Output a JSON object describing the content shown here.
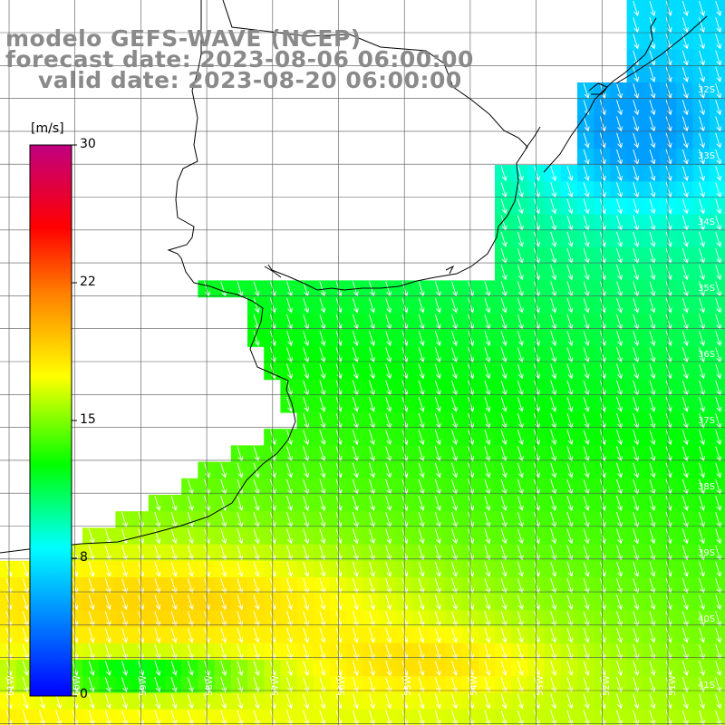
{
  "title": {
    "line1": "modelo GEFS-WAVE (NCEP)",
    "line2": "forecast date: 2023-08-06 06:00:00",
    "line3": "valid date: 2023-08-20 06:00:00"
  },
  "colorbar": {
    "unit": "[m/s]",
    "ticks": [
      "30",
      "22",
      "15",
      "8",
      "0"
    ],
    "tick_values": [
      30,
      22,
      15,
      8,
      0
    ],
    "colors": [
      "#0000ff",
      "#00ffff",
      "#00ff00",
      "#ffff00",
      "#ff8000",
      "#ff0000",
      "#c00080"
    ]
  },
  "lat_labels": [
    "32S",
    "33S",
    "34S",
    "35S",
    "36S",
    "37S",
    "38S",
    "39S",
    "40S",
    "41S"
  ],
  "lon_labels": [
    "61W",
    "60W",
    "59W",
    "58W",
    "57W",
    "56W",
    "55W",
    "54W",
    "53W",
    "52W",
    "51W"
  ],
  "field": {
    "variable": "wind speed",
    "units": "m/s",
    "typical_range": [
      8,
      19
    ]
  }
}
